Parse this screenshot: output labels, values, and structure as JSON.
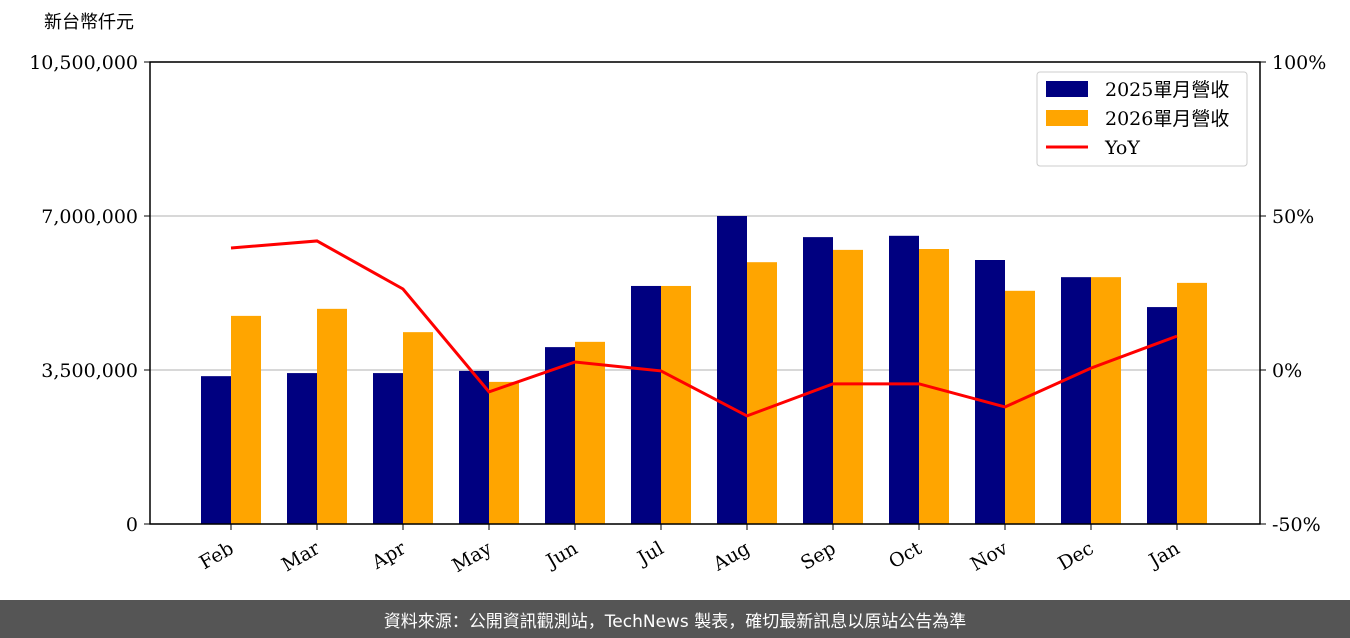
{
  "chart_data": {
    "type": "bar",
    "y_label": "新台幣仟元",
    "categories": [
      "Feb",
      "Mar",
      "Apr",
      "May",
      "Jun",
      "Jul",
      "Aug",
      "Sep",
      "Oct",
      "Nov",
      "Dec",
      "Jan"
    ],
    "series": [
      {
        "name": "2025單月營收",
        "color": "#000080",
        "values": [
          3360000,
          3430000,
          3430000,
          3480000,
          4020000,
          5410000,
          7000000,
          6520000,
          6550000,
          6000000,
          5610000,
          4930000
        ]
      },
      {
        "name": "2026單月營收",
        "color": "#ffa500",
        "values": [
          4730000,
          4890000,
          4360000,
          3230000,
          4140000,
          5410000,
          5950000,
          6230000,
          6250000,
          5300000,
          5610000,
          5480000
        ]
      },
      {
        "name": "YoY",
        "type": "line",
        "axis": "y2",
        "color": "#ff0000",
        "values": [
          39.6,
          41.9,
          26.3,
          -7.1,
          2.6,
          -0.3,
          -14.9,
          -4.5,
          -4.5,
          -12.0,
          0.6,
          11.0
        ]
      }
    ],
    "ylim": [
      0,
      10500000
    ],
    "yticks": [
      0,
      {
        "value": 3500000,
        "label": "3,500,000"
      },
      {
        "value": 7000000,
        "label": "7,000,000"
      },
      {
        "value": 10500000,
        "label": "10,500,000"
      }
    ],
    "y2lim": [
      -50,
      100
    ],
    "y2ticks": [
      {
        "value": -50,
        "label": "-50%"
      },
      {
        "value": 0,
        "label": "0%"
      },
      {
        "value": 50,
        "label": "50%"
      },
      {
        "value": 100,
        "label": "100%"
      }
    ],
    "grid": true,
    "legend": "upper right",
    "footer": "資料來源：公開資訊觀測站，TechNews 製表，確切最新訊息以原站公告為準"
  }
}
